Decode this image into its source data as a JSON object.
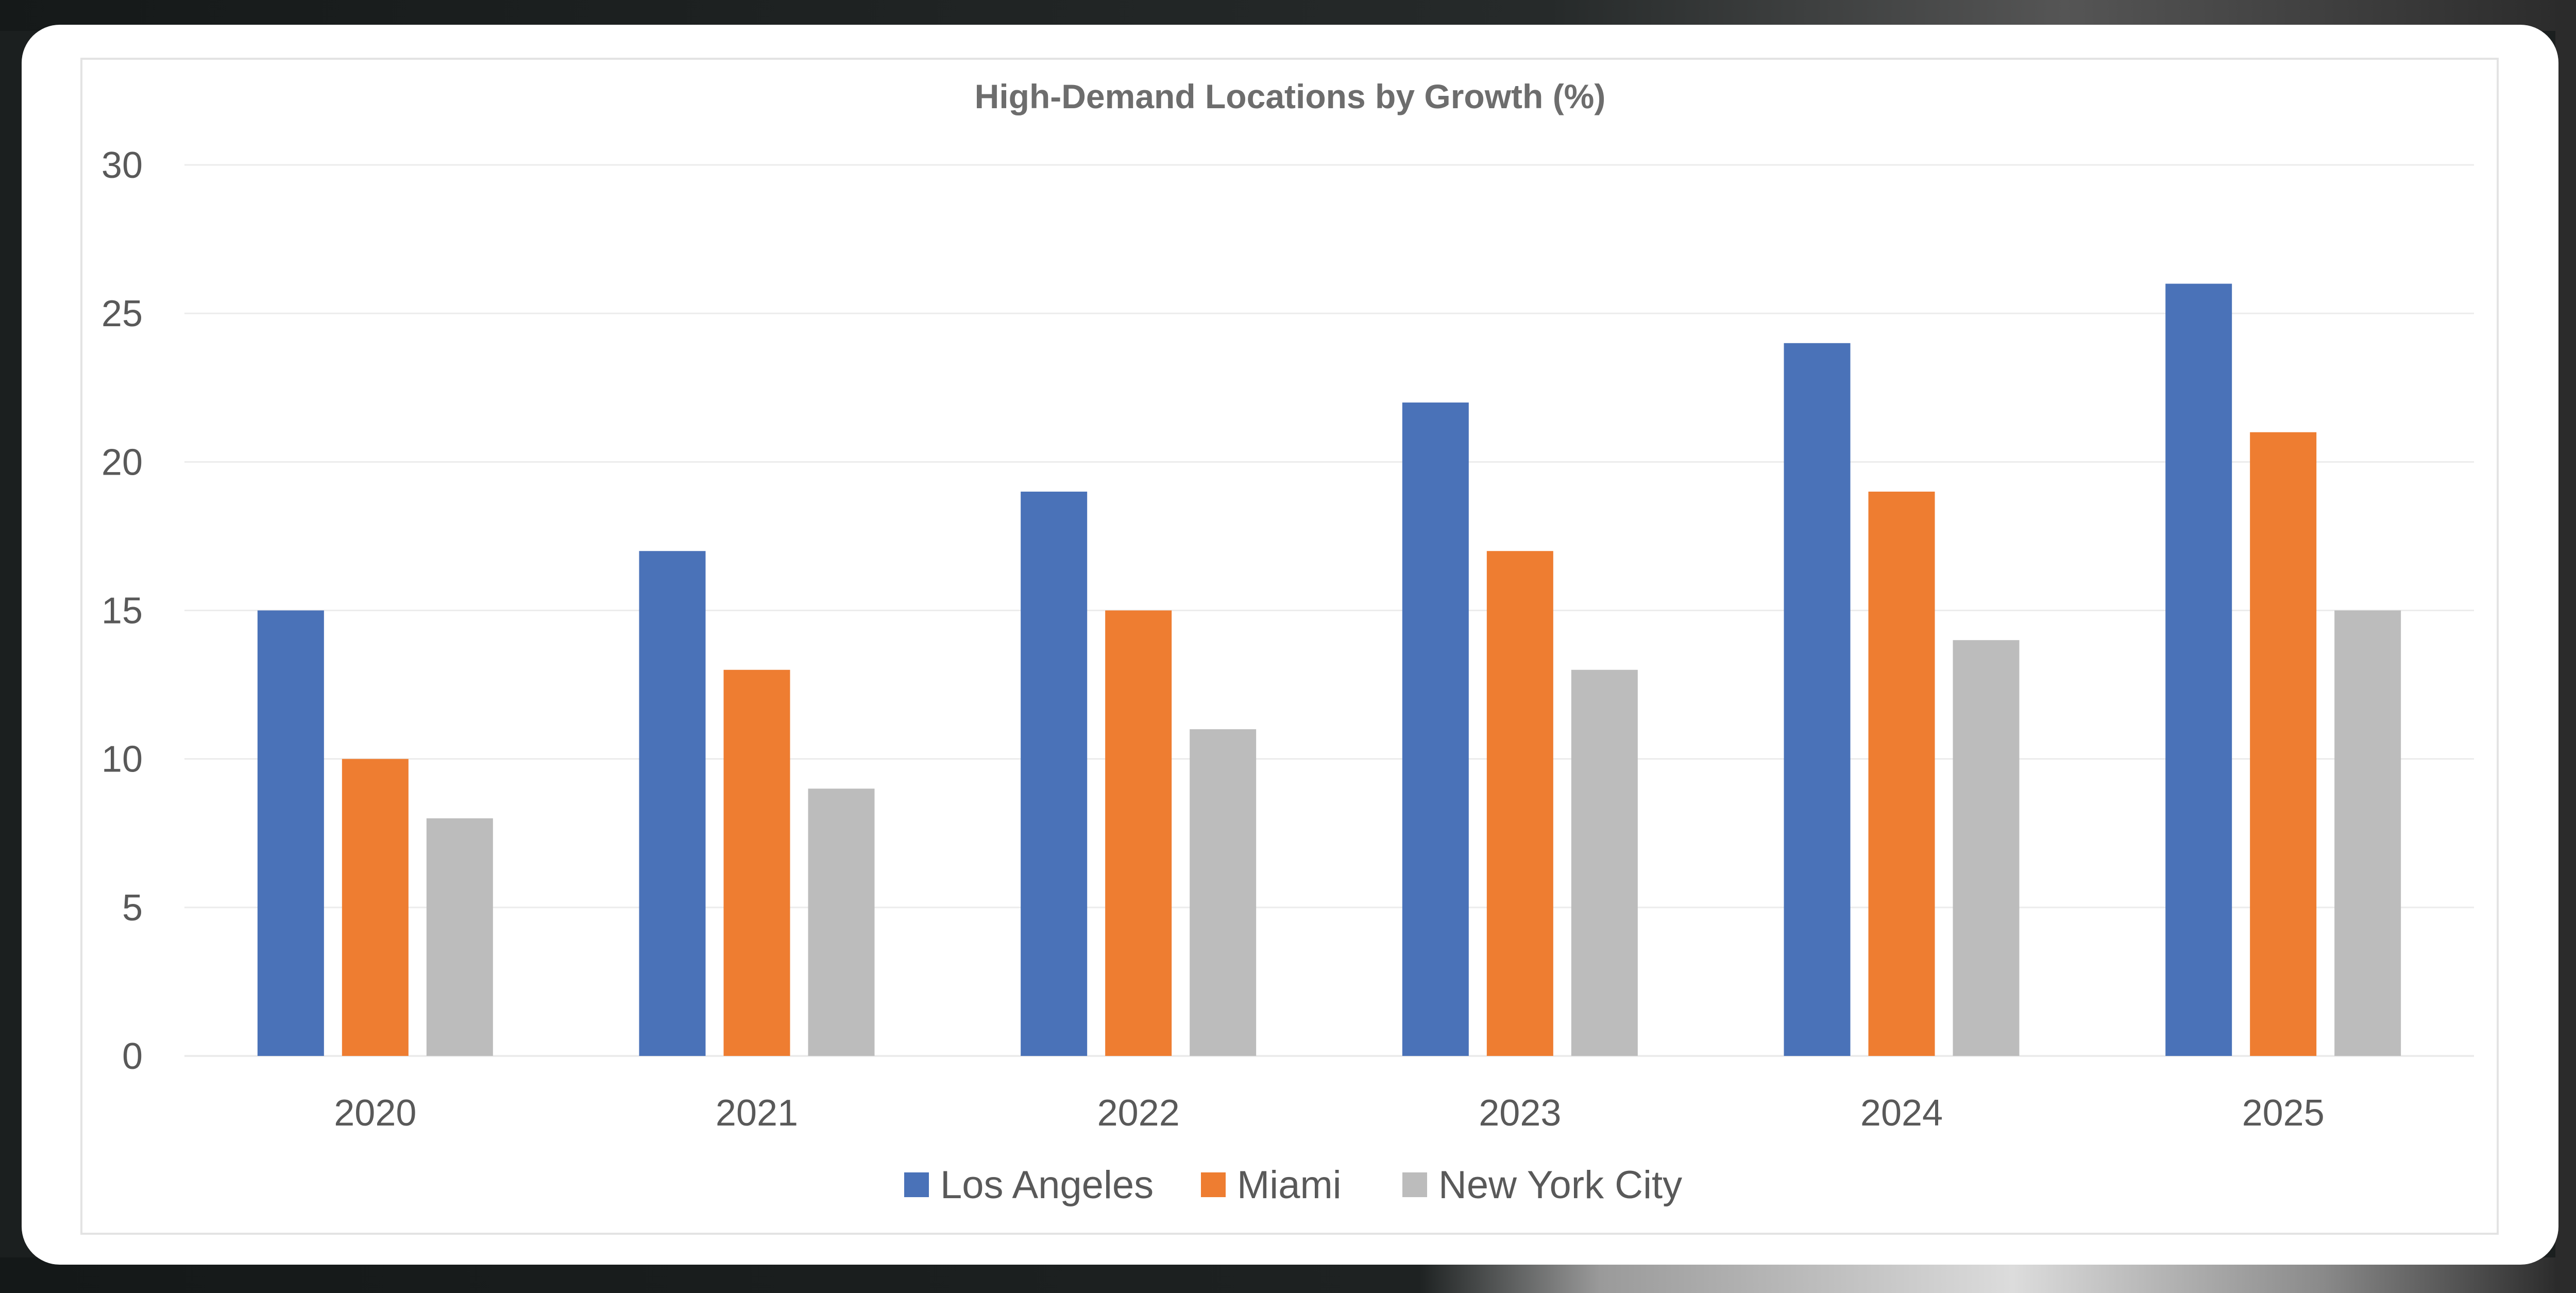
{
  "chart_data": {
    "type": "bar",
    "title": "High-Demand Locations by Growth (%)",
    "xlabel": "",
    "ylabel": "",
    "categories": [
      "2020",
      "2021",
      "2022",
      "2023",
      "2024",
      "2025"
    ],
    "series": [
      {
        "name": "Los Angeles",
        "color": "#4a72b8",
        "values": [
          15,
          17,
          19,
          22,
          24,
          26
        ]
      },
      {
        "name": "Miami",
        "color": "#ee7d31",
        "values": [
          10,
          13,
          15,
          17,
          19,
          21
        ]
      },
      {
        "name": "New York City",
        "color": "#bcbcbc",
        "values": [
          8,
          9,
          11,
          13,
          14,
          15
        ]
      }
    ],
    "ylim": [
      0,
      30
    ],
    "yticks": [
      "0",
      "5",
      "10",
      "15",
      "20",
      "25",
      "30"
    ],
    "grid": true,
    "legend": "bottom"
  },
  "colors": {
    "text": "#595959",
    "title": "#6d6d6d",
    "grid": "#ececec",
    "plot_border": "#e3e3e3",
    "card": "#ffffff",
    "backdrop": "#1b1f1f"
  }
}
